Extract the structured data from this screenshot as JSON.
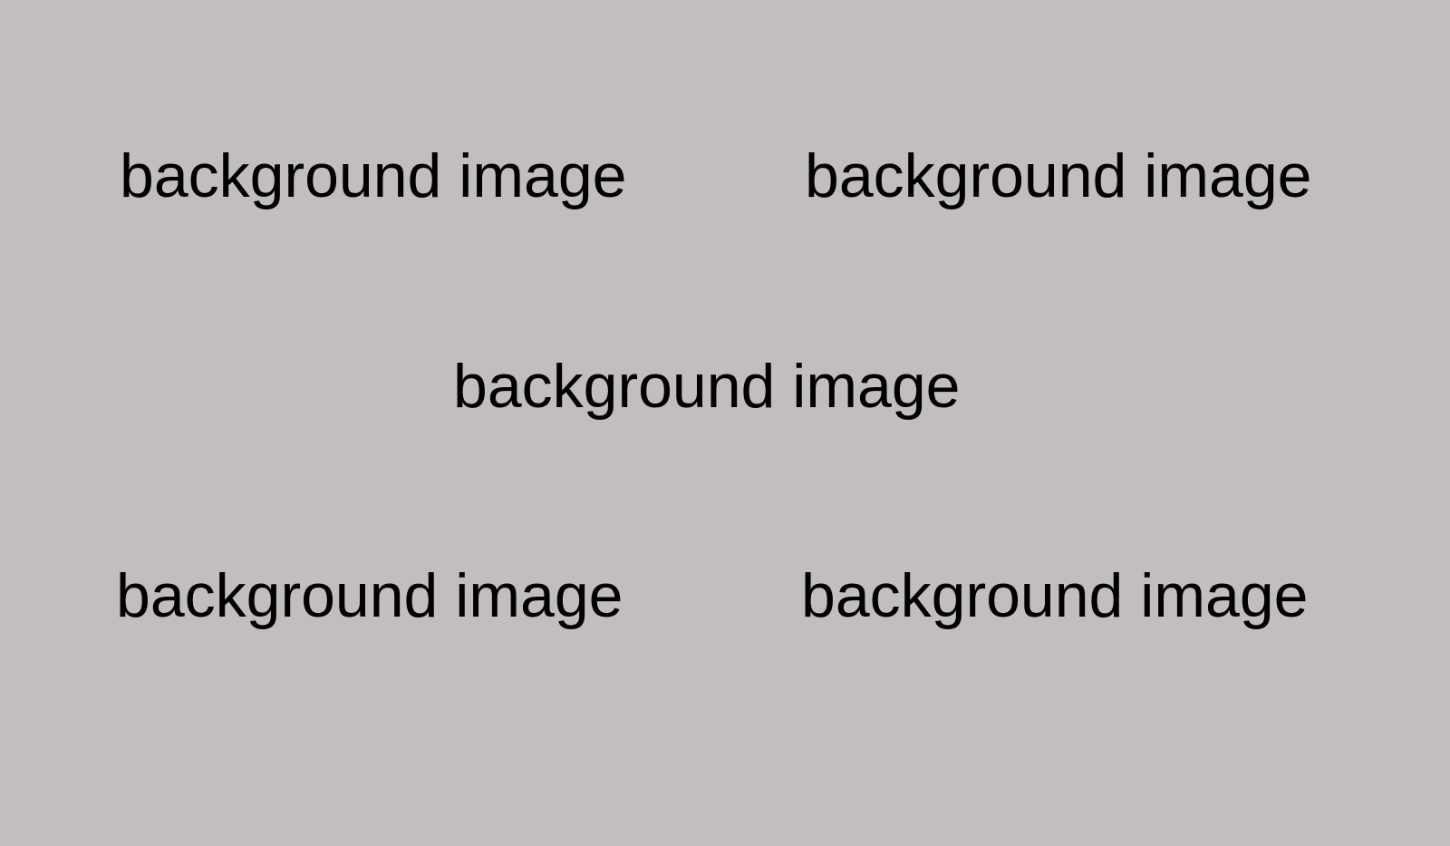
{
  "background": {
    "color": "#c2bebf",
    "labels": [
      "background image",
      "background image",
      "background image",
      "background image",
      "background image"
    ]
  }
}
